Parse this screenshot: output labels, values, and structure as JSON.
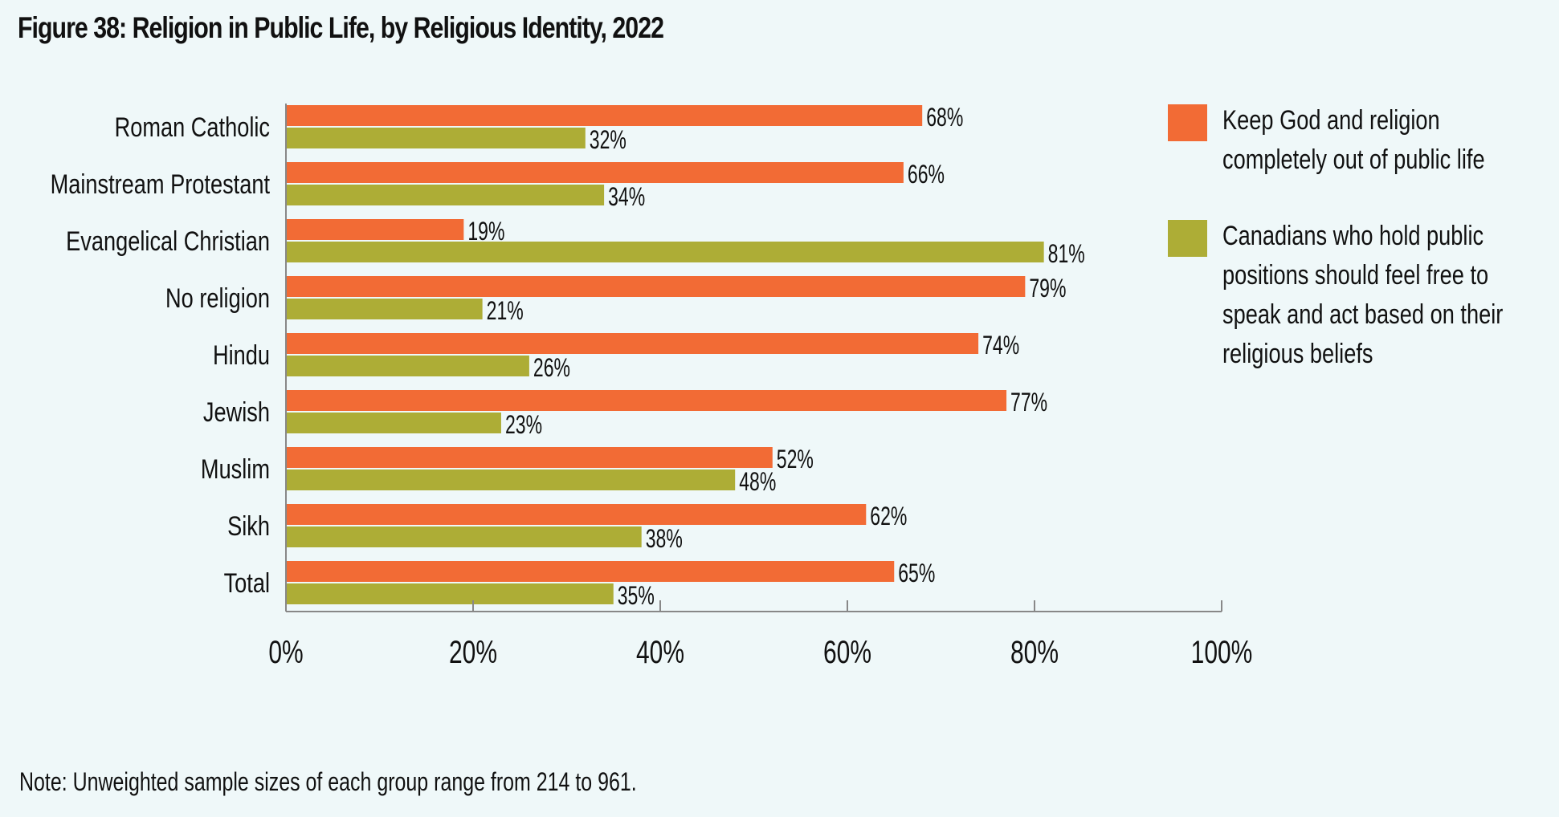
{
  "title": "Figure 38: Religion in Public Life, by Religious Identity, 2022",
  "note": "Note: Unweighted sample sizes of each group range from 214 to 961.",
  "colors": {
    "series1": "#f26b35",
    "series2": "#adad36",
    "background": "#eff8f9",
    "axis": "#888888"
  },
  "chart_data": {
    "type": "bar",
    "orientation": "horizontal",
    "title": "Figure 38: Religion in Public Life, by Religious Identity, 2022",
    "xlabel": "",
    "ylabel": "",
    "xlim": [
      0,
      100
    ],
    "x_ticks": [
      "0%",
      "20%",
      "40%",
      "60%",
      "80%",
      "100%"
    ],
    "grid": false,
    "legend_position": "right",
    "categories": [
      "Roman Catholic",
      "Mainstream Protestant",
      "Evangelical Christian",
      "No religion",
      "Hindu",
      "Jewish",
      "Muslim",
      "Sikh",
      "Total"
    ],
    "series": [
      {
        "name": "Keep God and religion completely out of public life",
        "values": [
          68,
          66,
          19,
          79,
          74,
          77,
          52,
          62,
          65
        ]
      },
      {
        "name": "Canadians who hold public positions should feel free to speak and act based on their religious beliefs",
        "values": [
          32,
          34,
          81,
          21,
          26,
          23,
          48,
          38,
          35
        ]
      }
    ]
  }
}
